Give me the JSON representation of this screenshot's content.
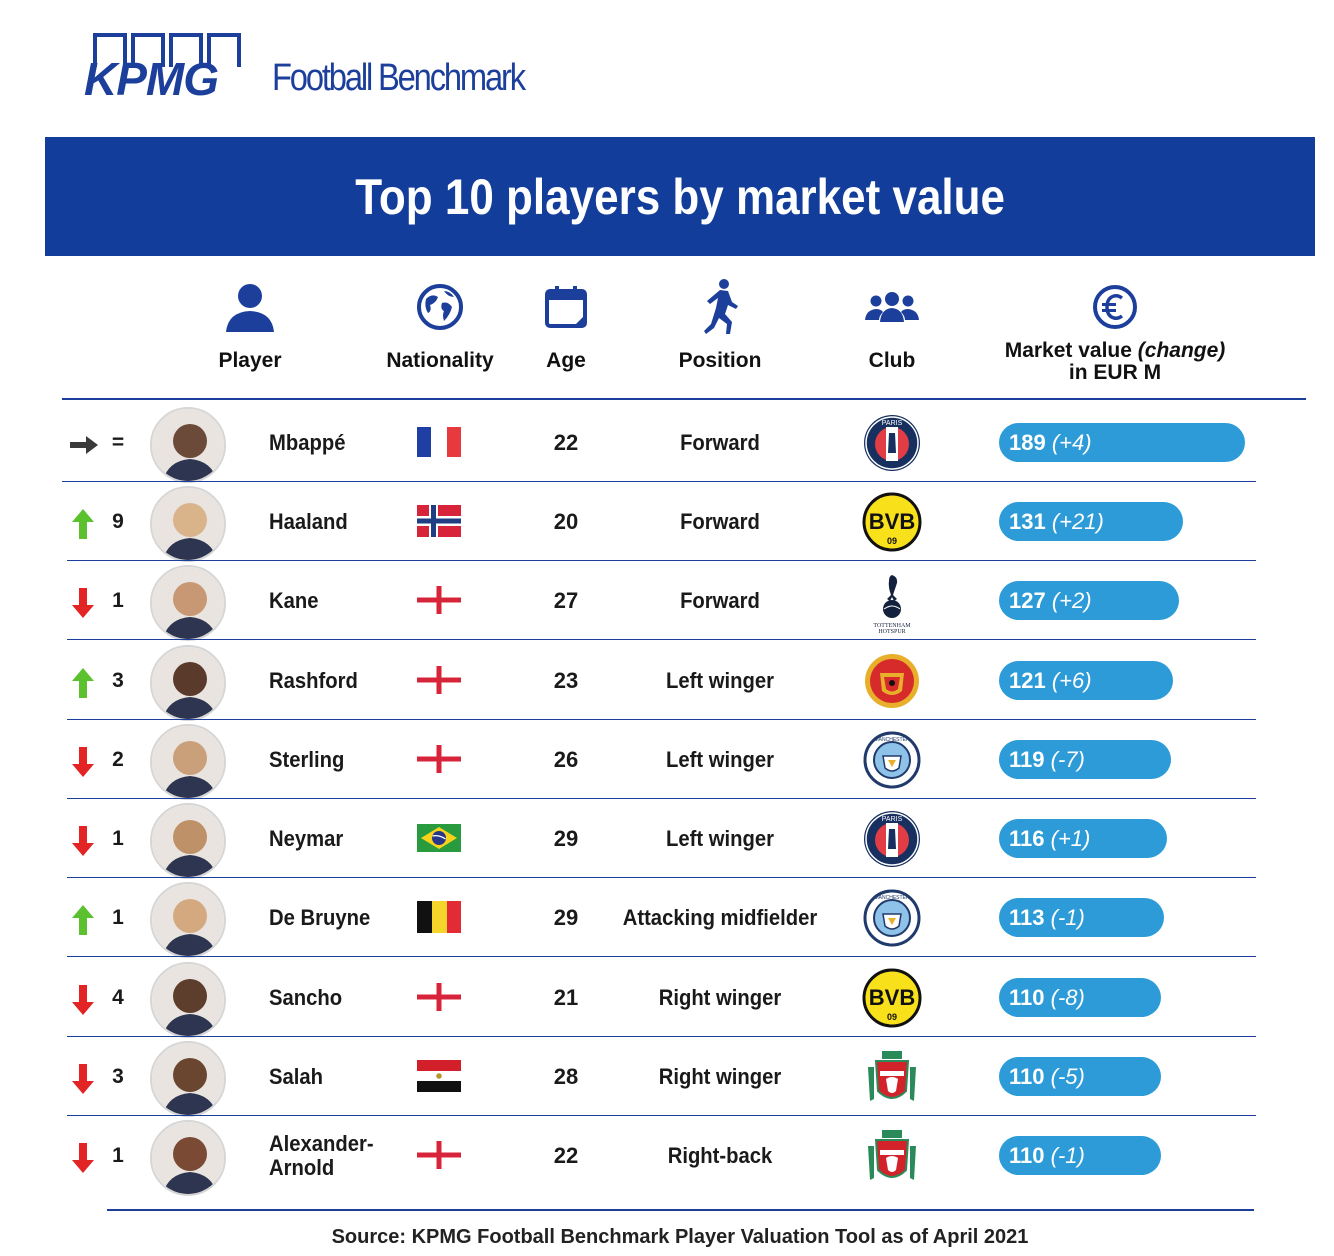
{
  "brand": {
    "logo_word": "KPMG",
    "product": "Football Benchmark"
  },
  "title": "Top 10 players by market value",
  "headers": {
    "player": "Player",
    "nationality": "Nationality",
    "age": "Age",
    "position": "Position",
    "club": "Club",
    "market_value_line1": "Market value",
    "market_value_change": "(change)",
    "market_value_line2": "in EUR M"
  },
  "colors": {
    "brand_blue": "#123d9a",
    "pill_blue": "#2d9bd8",
    "up_green": "#5cc12e",
    "down_red": "#e22424"
  },
  "source": "Source: KPMG Football Benchmark Player Valuation Tool as of April 2021",
  "chart_data": {
    "type": "table",
    "columns": [
      "Player",
      "Nationality",
      "Age",
      "Position",
      "Club",
      "Market value (change) in EUR M"
    ],
    "rows": [
      {
        "trend": "same",
        "rank_change": "=",
        "player": "Mbappé",
        "nationality_flag": "flag-france-icon",
        "age": "22",
        "position": "Forward",
        "club_crest": "psg-crest-icon",
        "value": 189,
        "change": "(+4)"
      },
      {
        "trend": "up",
        "rank_change": "9",
        "player": "Haaland",
        "nationality_flag": "flag-norway-icon",
        "age": "20",
        "position": "Forward",
        "club_crest": "bvb-crest-icon",
        "value": 131,
        "change": "(+21)"
      },
      {
        "trend": "down",
        "rank_change": "1",
        "player": "Kane",
        "nationality_flag": "flag-england-icon",
        "age": "27",
        "position": "Forward",
        "club_crest": "tottenham-crest-icon",
        "value": 127,
        "change": "(+2)"
      },
      {
        "trend": "up",
        "rank_change": "3",
        "player": "Rashford",
        "nationality_flag": "flag-england-icon",
        "age": "23",
        "position": "Left winger",
        "club_crest": "man-united-crest-icon",
        "value": 121,
        "change": "(+6)"
      },
      {
        "trend": "down",
        "rank_change": "2",
        "player": "Sterling",
        "nationality_flag": "flag-england-icon",
        "age": "26",
        "position": "Left winger",
        "club_crest": "man-city-crest-icon",
        "value": 119,
        "change": "(-7)"
      },
      {
        "trend": "down",
        "rank_change": "1",
        "player": "Neymar",
        "nationality_flag": "flag-brazil-icon",
        "age": "29",
        "position": "Left winger",
        "club_crest": "psg-crest-icon",
        "value": 116,
        "change": "(+1)"
      },
      {
        "trend": "up",
        "rank_change": "1",
        "player": "De Bruyne",
        "nationality_flag": "flag-belgium-icon",
        "age": "29",
        "position": "Attacking midfielder",
        "club_crest": "man-city-crest-icon",
        "value": 113,
        "change": "(-1)"
      },
      {
        "trend": "down",
        "rank_change": "4",
        "player": "Sancho",
        "nationality_flag": "flag-england-icon",
        "age": "21",
        "position": "Right winger",
        "club_crest": "bvb-crest-icon",
        "value": 110,
        "change": "(-8)"
      },
      {
        "trend": "down",
        "rank_change": "3",
        "player": "Salah",
        "nationality_flag": "flag-egypt-icon",
        "age": "28",
        "position": "Right winger",
        "club_crest": "liverpool-crest-icon",
        "value": 110,
        "change": "(-5)"
      },
      {
        "trend": "down",
        "rank_change": "1",
        "player": "Alexander-Arnold",
        "nationality_flag": "flag-england-icon",
        "age": "22",
        "position": "Right-back",
        "club_crest": "liverpool-crest-icon",
        "value": 110,
        "change": "(-1)"
      }
    ]
  }
}
